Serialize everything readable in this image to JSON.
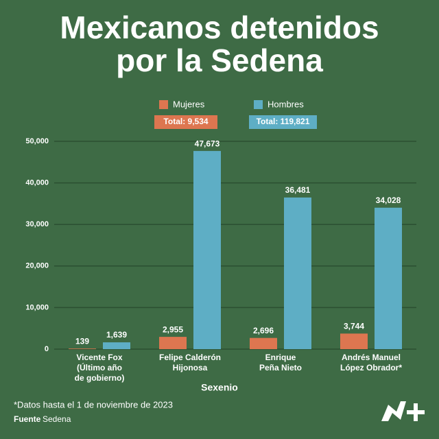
{
  "chart_data": {
    "type": "bar",
    "title": [
      "Mexicanos detenidos",
      "por la Sedena"
    ],
    "categories": [
      "Vicente Fox\n(Último año\nde gobierno)",
      "Felipe Calderón\nHijonosa",
      "Enrique\nPeña Nieto",
      "Andrés Manuel\nLópez Obrador*"
    ],
    "series": [
      {
        "name": "Mujeres",
        "color": "#dd7650",
        "total_label": "Total: 9,534",
        "values": [
          139,
          2955,
          2696,
          3744
        ],
        "value_labels": [
          "139",
          "2,955",
          "2,696",
          "3,744"
        ]
      },
      {
        "name": "Hombres",
        "color": "#5eaec5",
        "total_label": "Total: 119,821",
        "values": [
          1639,
          47673,
          36481,
          34028
        ],
        "value_labels": [
          "1,639",
          "47,673",
          "36,481",
          "34,028"
        ]
      }
    ],
    "xlabel": "Sexenio",
    "ylim": [
      0,
      50000
    ],
    "yticks": [
      0,
      {
        "value": 10000,
        "label": "10,000"
      },
      {
        "value": 20000,
        "label": "20,000"
      },
      {
        "value": 30000,
        "label": "30,000"
      },
      {
        "value": 40000,
        "label": "40,000"
      },
      {
        "value": 50000,
        "label": "50,000"
      }
    ],
    "grid": true,
    "footnote": "*Datos hasta el 1 de noviembre de 2023",
    "source_label": "Fuente",
    "source": "Sedena"
  }
}
